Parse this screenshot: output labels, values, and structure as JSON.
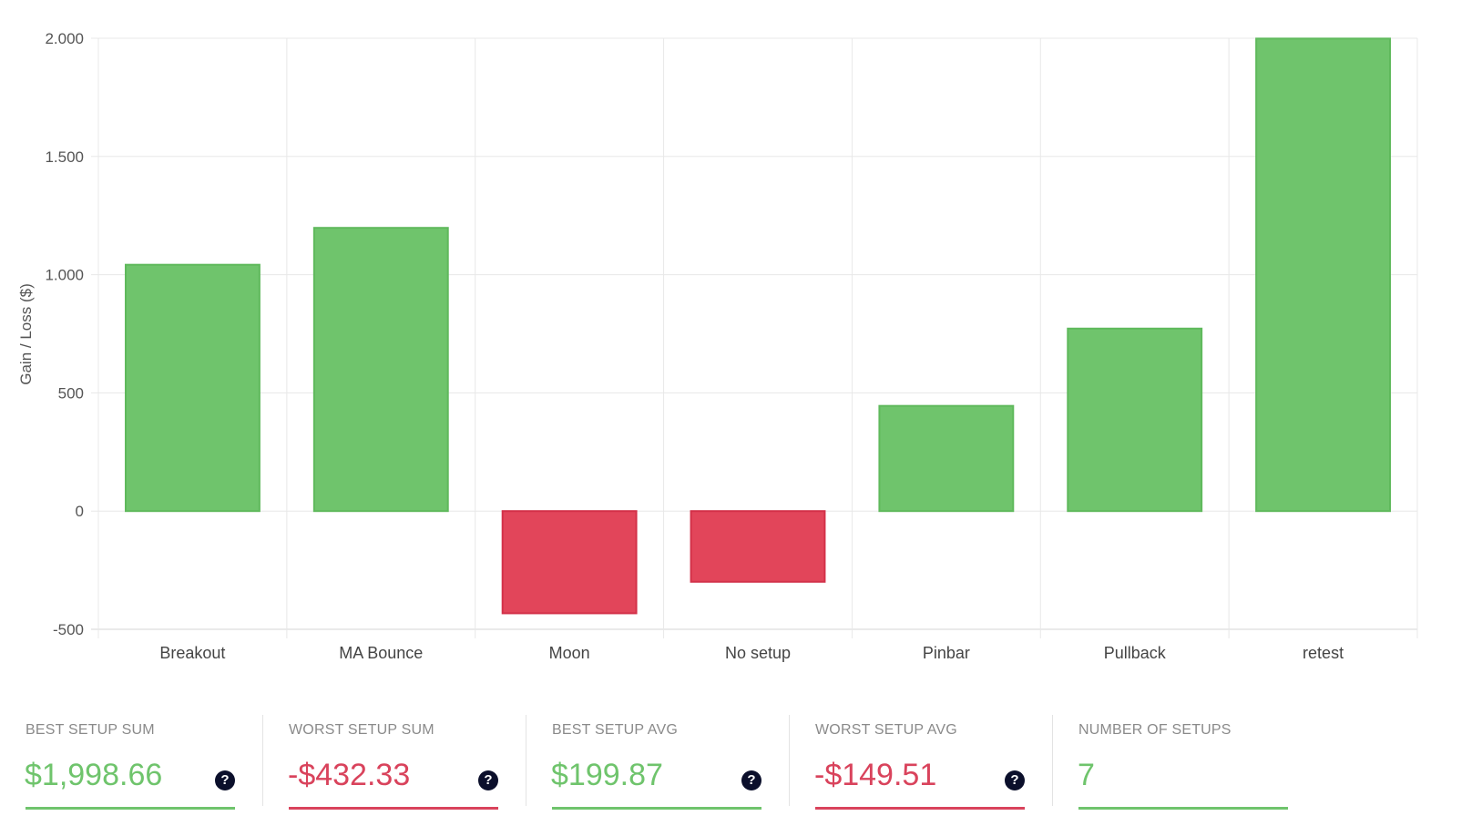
{
  "chart_data": {
    "type": "bar",
    "categories": [
      "Breakout",
      "MA Bounce",
      "Moon",
      "No setup",
      "Pinbar",
      "Pullback",
      "retest"
    ],
    "values": [
      1042,
      1198,
      -432.33,
      -299,
      445,
      772,
      1998.66
    ],
    "ylabel": "Gain / Loss ($)",
    "ylim": [
      -500,
      2000
    ],
    "yticks": [
      -500,
      0,
      500,
      1000,
      1500,
      2000
    ],
    "ytick_labels": [
      "-500",
      "0",
      "500",
      "1.000",
      "1.500",
      "2.000"
    ],
    "grid": true,
    "positive_color": "#6fc46c",
    "negative_color": "#e2455a"
  },
  "stats": [
    {
      "label": "BEST SETUP SUM",
      "value": "$1,998.66",
      "color": "#6fc46c",
      "help_icon": "question-circle-icon",
      "has_help": true
    },
    {
      "label": "WORST SETUP SUM",
      "value": "-$432.33",
      "color": "#d9435c",
      "help_icon": "question-circle-icon",
      "has_help": true
    },
    {
      "label": "BEST SETUP AVG",
      "value": "$199.87",
      "color": "#6fc46c",
      "help_icon": "question-circle-icon",
      "has_help": true
    },
    {
      "label": "WORST SETUP AVG",
      "value": "-$149.51",
      "color": "#d9435c",
      "help_icon": "question-circle-icon",
      "has_help": true
    },
    {
      "label": "NUMBER OF SETUPS",
      "value": "7",
      "color": "#6fc46c",
      "has_help": false
    }
  ],
  "help_glyph": "?"
}
